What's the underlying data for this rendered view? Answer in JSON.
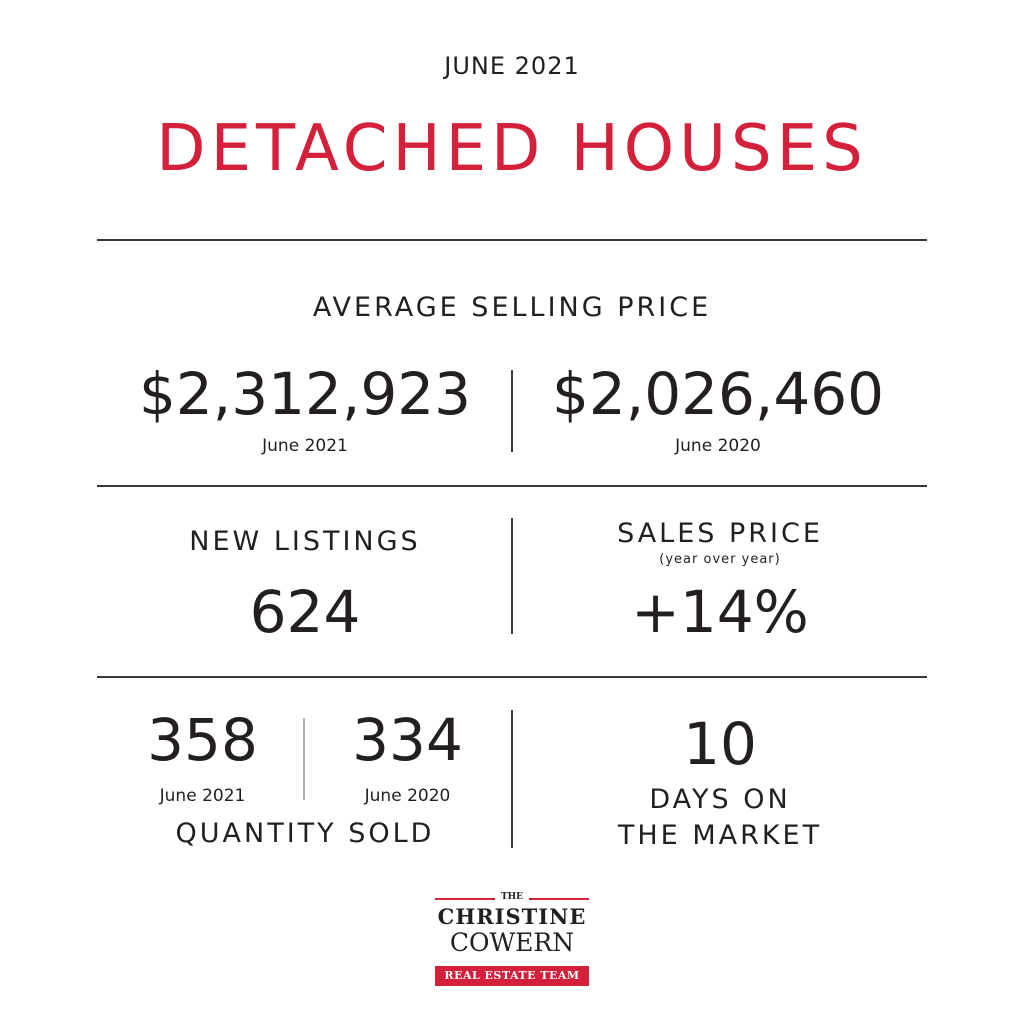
{
  "header": {
    "month": "JUNE 2021",
    "title": "DETACHED HOUSES"
  },
  "average_selling_price": {
    "label": "AVERAGE SELLING PRICE",
    "current_value": "$2,312,923",
    "current_period": "June 2021",
    "previous_value": "$2,026,460",
    "previous_period": "June 2020"
  },
  "new_listings": {
    "label": "NEW LISTINGS",
    "value": "624"
  },
  "sales_price": {
    "label": "SALES PRICE",
    "sublabel": "(year over year)",
    "value": "+14%"
  },
  "quantity_sold": {
    "current_value": "358",
    "current_period": "June 2021",
    "previous_value": "334",
    "previous_period": "June 2020",
    "label": "QUANTITY SOLD"
  },
  "days_on_market": {
    "value": "10",
    "label_line1": "DAYS ON",
    "label_line2": "THE MARKET"
  },
  "logo": {
    "the": "THE",
    "line1": "CHRISTINE",
    "line2": "COWERN",
    "tagline": "REAL ESTATE TEAM"
  },
  "colors": {
    "accent": "#d4203a",
    "text": "#231f20",
    "rule": "#3a3a3a"
  }
}
